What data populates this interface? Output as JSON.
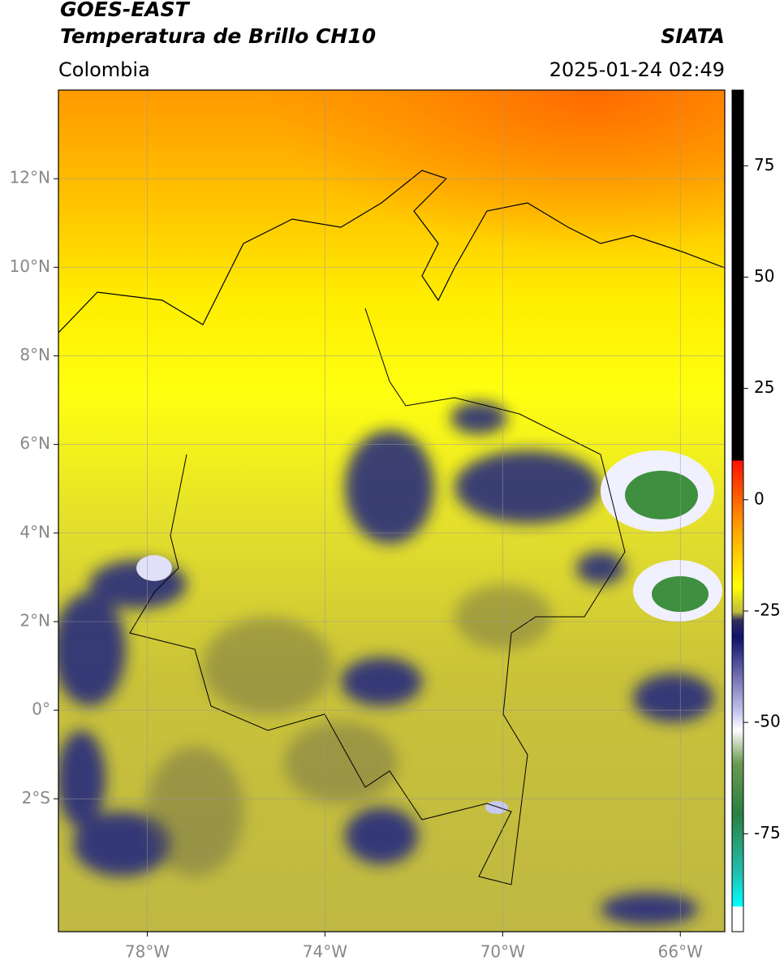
{
  "header": {
    "title": "GOES-EAST",
    "subtitle": "Temperatura de Brillo CH10",
    "agency": "SIATA",
    "region": "Colombia",
    "datetime": "2025-01-24 02:49"
  },
  "map": {
    "xlim": [
      -80,
      -65
    ],
    "ylim": [
      -5,
      14
    ],
    "grid": true,
    "xticks": [
      {
        "value": -78,
        "label": "78°W"
      },
      {
        "value": -74,
        "label": "74°W"
      },
      {
        "value": -70,
        "label": "70°W"
      },
      {
        "value": -66,
        "label": "66°W"
      }
    ],
    "yticks": [
      {
        "value": 12,
        "label": "12°N"
      },
      {
        "value": 10,
        "label": "10°N"
      },
      {
        "value": 8,
        "label": "8°N"
      },
      {
        "value": 6,
        "label": "6°N"
      },
      {
        "value": 4,
        "label": "4°N"
      },
      {
        "value": 2,
        "label": "2°N"
      },
      {
        "value": 0,
        "label": "0°"
      },
      {
        "value": -2,
        "label": "2°S"
      }
    ]
  },
  "colorbar": {
    "lim": [
      -97,
      92
    ],
    "ticks": [
      75,
      50,
      25,
      0,
      -25,
      -50,
      -75
    ]
  }
}
